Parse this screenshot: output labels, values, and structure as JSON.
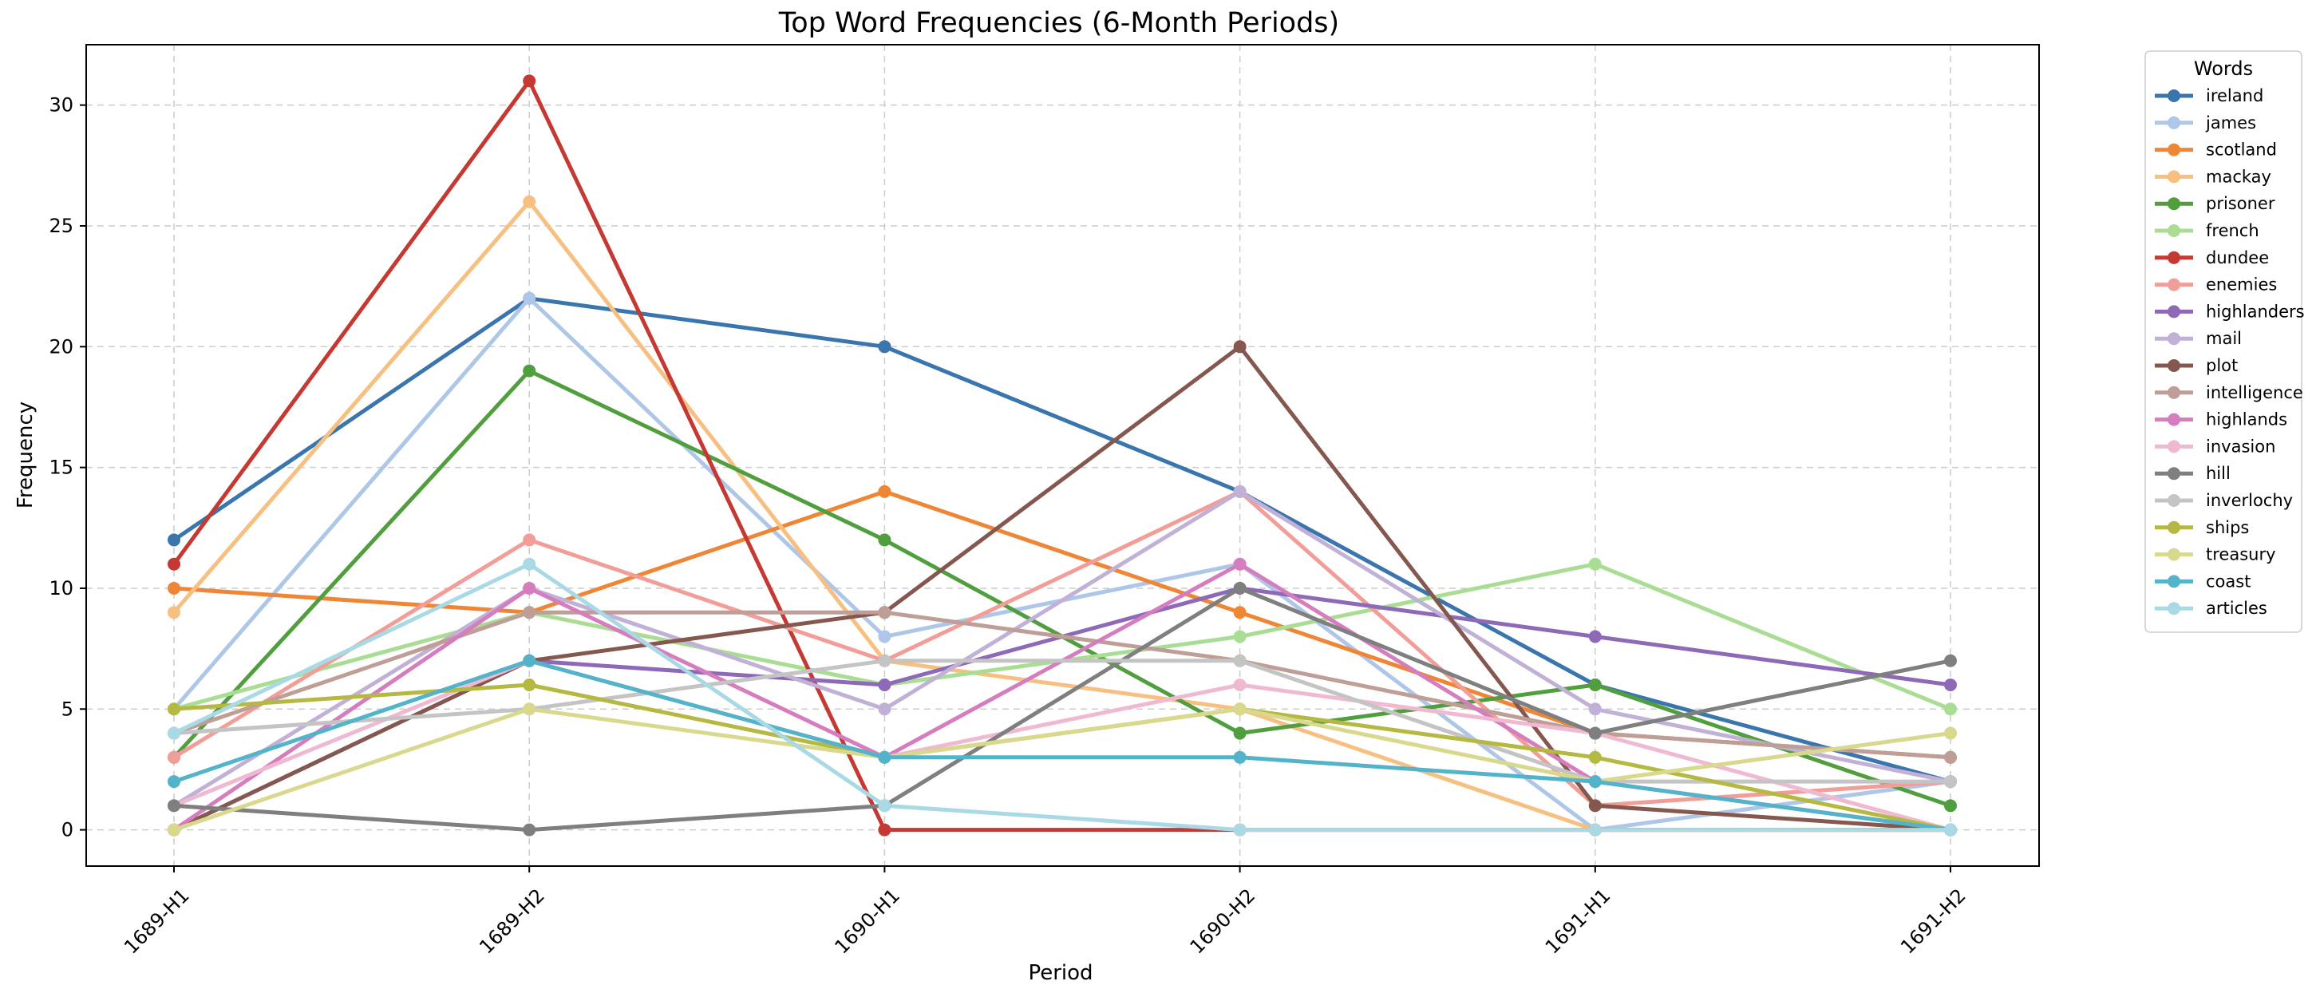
{
  "chart_data": {
    "type": "line",
    "title": "Top Word Frequencies (6-Month Periods)",
    "xlabel": "Period",
    "ylabel": "Frequency",
    "categories": [
      "1689-H1",
      "1689-H2",
      "1690-H1",
      "1690-H2",
      "1691-H1",
      "1691-H2"
    ],
    "ylim": [
      -1.5,
      32.5
    ],
    "yticks": [
      0,
      5,
      10,
      15,
      20,
      25,
      30
    ],
    "grid": true,
    "legend_title": "Words",
    "legend_position": "outside-right",
    "series": [
      {
        "name": "ireland",
        "color": "#3a75ae",
        "values": [
          12,
          22,
          20,
          14,
          6,
          2
        ]
      },
      {
        "name": "james",
        "color": "#aec7e8",
        "values": [
          5,
          22,
          8,
          11,
          0,
          2
        ]
      },
      {
        "name": "scotland",
        "color": "#ef8636",
        "values": [
          10,
          9,
          14,
          9,
          4,
          3
        ]
      },
      {
        "name": "mackay",
        "color": "#f7bf80",
        "values": [
          9,
          26,
          7,
          5,
          0,
          0
        ]
      },
      {
        "name": "prisoner",
        "color": "#519e3e",
        "values": [
          3,
          19,
          12,
          4,
          6,
          1
        ]
      },
      {
        "name": "french",
        "color": "#a8dd93",
        "values": [
          5,
          9,
          6,
          8,
          11,
          5
        ]
      },
      {
        "name": "dundee",
        "color": "#c53932",
        "values": [
          11,
          31,
          0,
          0,
          0,
          0
        ]
      },
      {
        "name": "enemies",
        "color": "#f29d98",
        "values": [
          3,
          12,
          7,
          14,
          1,
          2
        ]
      },
      {
        "name": "highlanders",
        "color": "#8d69b8",
        "values": [
          0,
          7,
          6,
          10,
          8,
          6
        ]
      },
      {
        "name": "mail",
        "color": "#c1b1d6",
        "values": [
          1,
          10,
          5,
          14,
          5,
          2
        ]
      },
      {
        "name": "plot",
        "color": "#84584e",
        "values": [
          0,
          7,
          9,
          20,
          1,
          0
        ]
      },
      {
        "name": "intelligence",
        "color": "#be9e97",
        "values": [
          4,
          9,
          9,
          7,
          4,
          3
        ]
      },
      {
        "name": "highlands",
        "color": "#d57dbe",
        "values": [
          0,
          10,
          3,
          11,
          2,
          0
        ]
      },
      {
        "name": "invasion",
        "color": "#f0b9d2",
        "values": [
          1,
          7,
          3,
          6,
          4,
          0
        ]
      },
      {
        "name": "hill",
        "color": "#7f7f7f",
        "values": [
          1,
          0,
          1,
          10,
          4,
          7
        ]
      },
      {
        "name": "inverlochy",
        "color": "#c4c4c4",
        "values": [
          4,
          5,
          7,
          7,
          2,
          2
        ]
      },
      {
        "name": "ships",
        "color": "#b6b941",
        "values": [
          5,
          6,
          3,
          5,
          3,
          0
        ]
      },
      {
        "name": "treasury",
        "color": "#d8d98c",
        "values": [
          0,
          5,
          3,
          5,
          2,
          4
        ]
      },
      {
        "name": "coast",
        "color": "#53b3ca",
        "values": [
          2,
          7,
          3,
          3,
          2,
          0
        ]
      },
      {
        "name": "articles",
        "color": "#a9d9e4",
        "values": [
          4,
          11,
          1,
          0,
          0,
          0
        ]
      }
    ]
  }
}
